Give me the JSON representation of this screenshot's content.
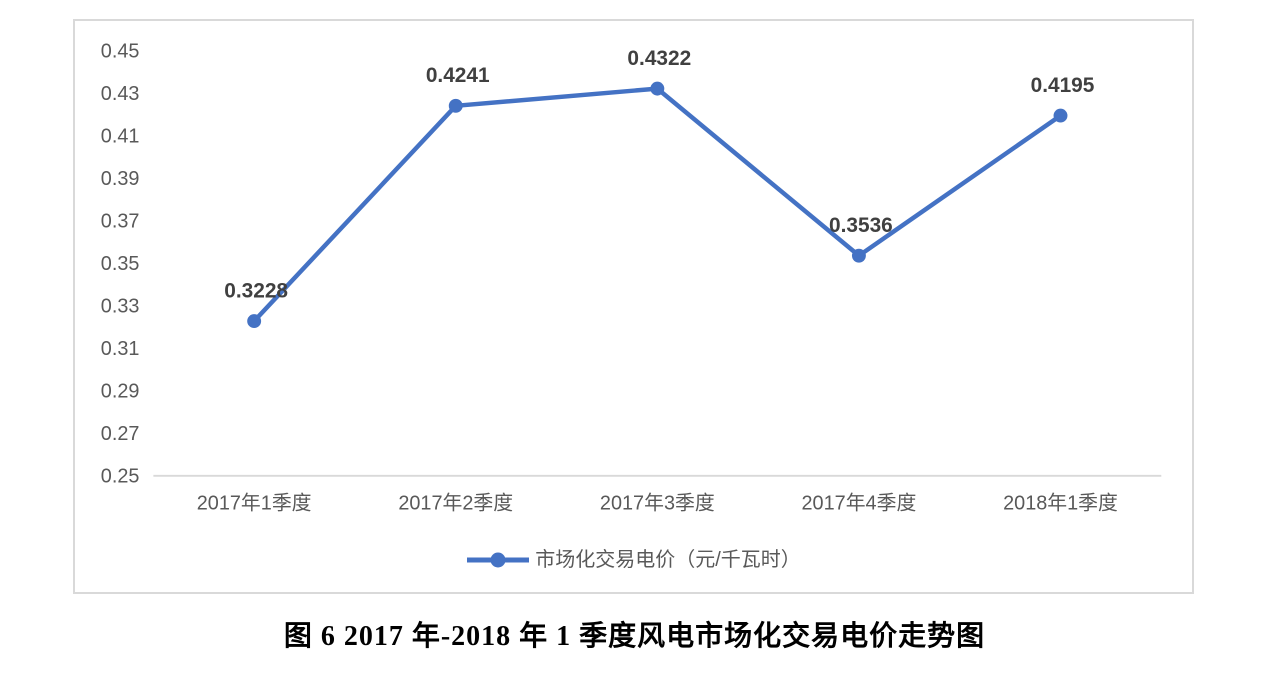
{
  "page": {
    "caption": "图 6 2017 年-2018 年 1 季度风电市场化交易电价走势图"
  },
  "legend": {
    "label": "市场化交易电价（元/千瓦时）"
  },
  "chart_data": {
    "type": "line",
    "title": "",
    "xlabel": "",
    "ylabel": "",
    "categories": [
      "2017年1季度",
      "2017年2季度",
      "2017年3季度",
      "2017年4季度",
      "2018年1季度"
    ],
    "series": [
      {
        "name": "市场化交易电价（元/千瓦时）",
        "values": [
          0.3228,
          0.4241,
          0.4322,
          0.3536,
          0.4195
        ],
        "labels": [
          "0.3228",
          "0.4241",
          "0.4322",
          "0.3536",
          "0.4195"
        ]
      }
    ],
    "ylim": [
      0.25,
      0.45
    ],
    "ytick_step": 0.02,
    "ytick_labels": [
      "0.45",
      "0.43",
      "0.41",
      "0.39",
      "0.37",
      "0.35",
      "0.33",
      "0.31",
      "0.29",
      "0.27",
      "0.25"
    ],
    "grid": false,
    "legend_position": "bottom",
    "colors": {
      "line": "#4472C4",
      "marker": "#4472C4",
      "axis_line": "#D9D9D9",
      "frame_border": "#D9D9D9",
      "tick_text": "#595959",
      "legend_text": "#595959",
      "data_label": "#404040",
      "caption_text": "#000000"
    }
  }
}
